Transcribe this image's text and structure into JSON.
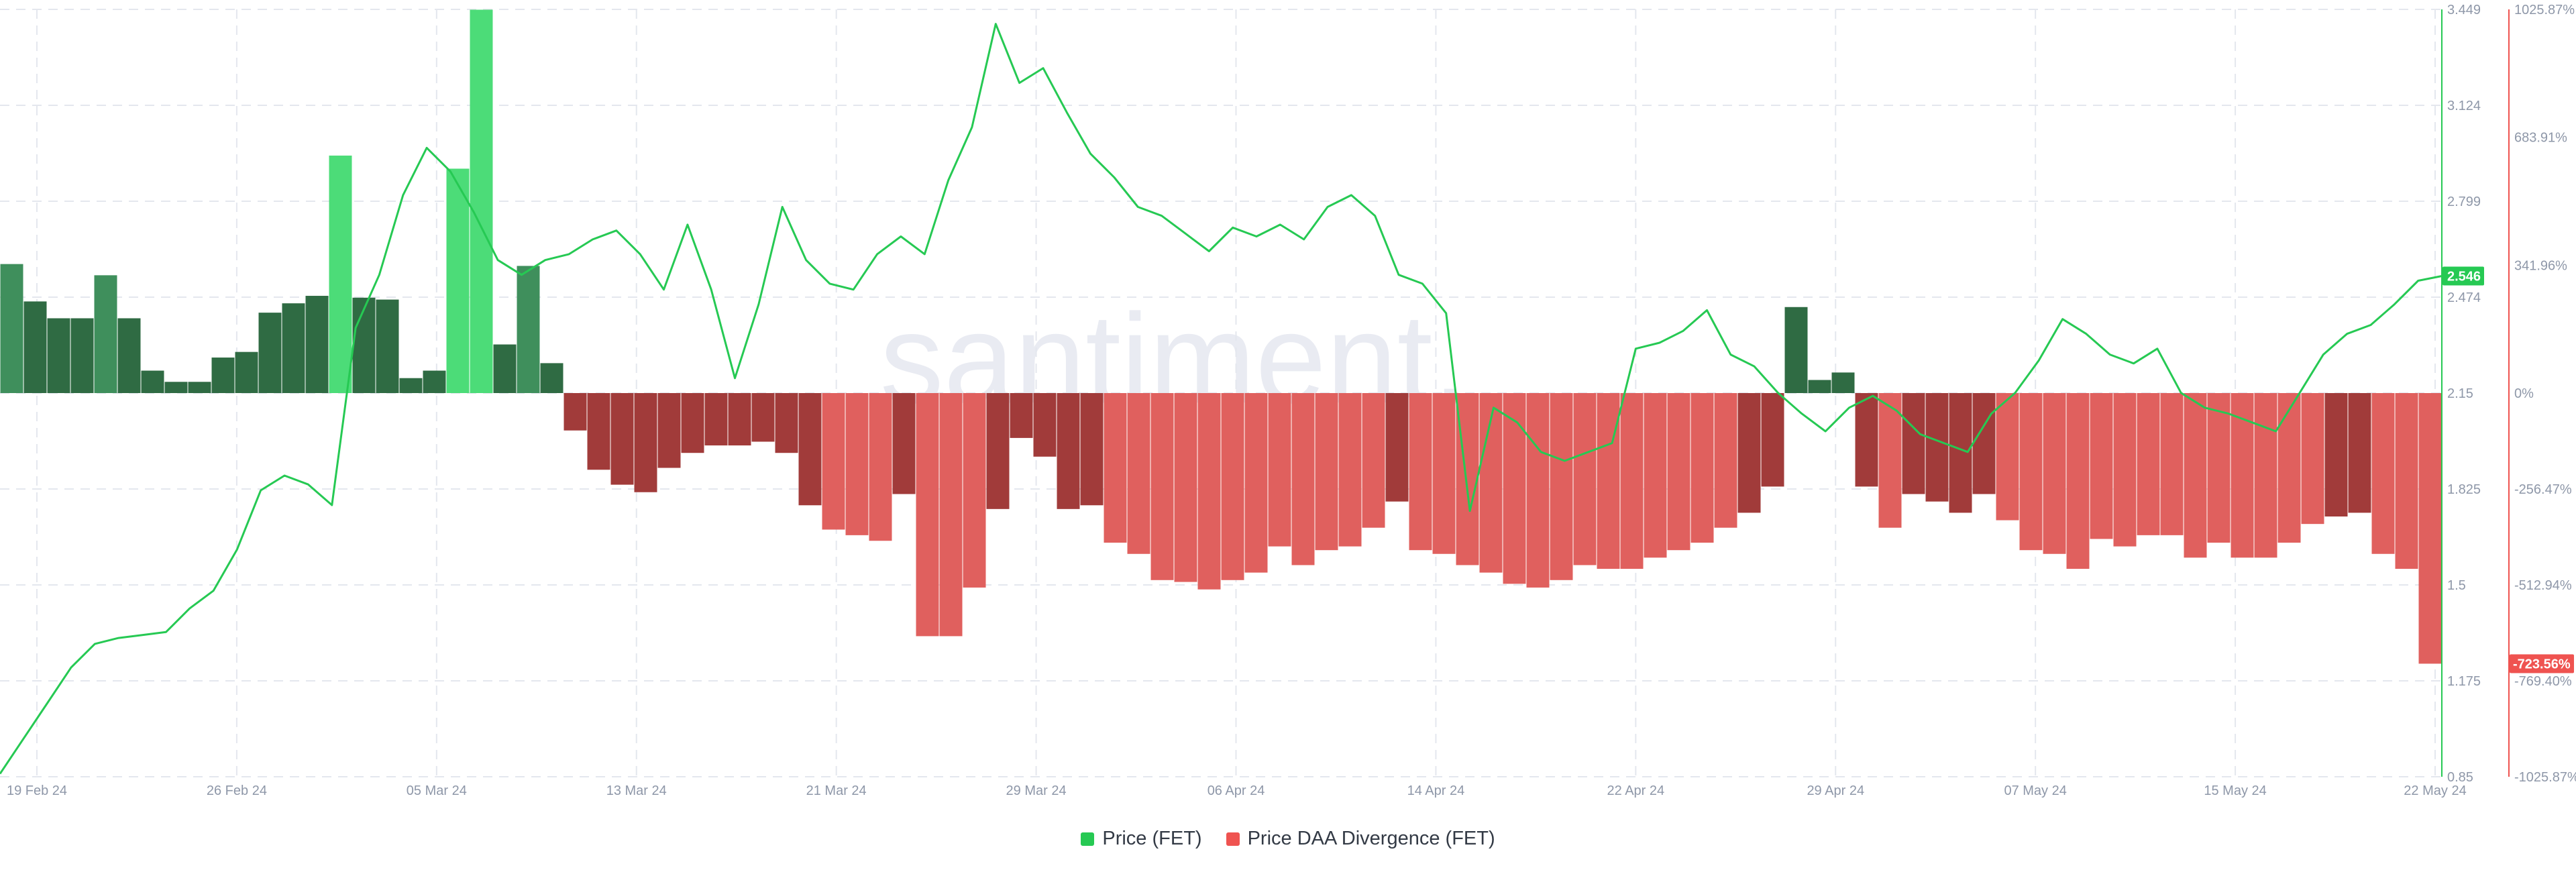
{
  "watermark": "santiment.",
  "legend": [
    {
      "label": "Price (FET)",
      "color": "#26c953"
    },
    {
      "label": "Price DAA Divergence (FET)",
      "color": "#ef5350"
    }
  ],
  "chart_data": {
    "type": "bar+line",
    "x_ticks": [
      "19 Feb 24",
      "26 Feb 24",
      "05 Mar 24",
      "13 Mar 24",
      "21 Mar 24",
      "29 Mar 24",
      "06 Apr 24",
      "14 Apr 24",
      "22 Apr 24",
      "29 Apr 24",
      "07 May 24",
      "15 May 24",
      "22 May 24"
    ],
    "price_axis": {
      "ticks": [
        "3.449",
        "3.124",
        "2.799",
        "2.474",
        "2.15",
        "1.825",
        "1.5",
        "1.175",
        "0.85"
      ],
      "range": [
        0.85,
        3.449
      ]
    },
    "divergence_axis": {
      "ticks": [
        "1025.87%",
        "683.91%",
        "341.96%",
        "0%",
        "-256.47%",
        "-512.94%",
        "-769.40%",
        "-1025.87%"
      ],
      "range": [
        -1025.87,
        1025.87
      ]
    },
    "last_price_label": "2.546",
    "last_divergence_label": "-723.56%",
    "price_series": {
      "name": "Price (FET)",
      "values": [
        0.86,
        0.98,
        1.1,
        1.22,
        1.3,
        1.32,
        1.33,
        1.34,
        1.42,
        1.48,
        1.62,
        1.82,
        1.87,
        1.84,
        1.77,
        2.37,
        2.55,
        2.82,
        2.98,
        2.9,
        2.76,
        2.6,
        2.55,
        2.6,
        2.62,
        2.67,
        2.7,
        2.62,
        2.5,
        2.72,
        2.5,
        2.2,
        2.45,
        2.78,
        2.6,
        2.52,
        2.5,
        2.62,
        2.68,
        2.62,
        2.87,
        3.05,
        3.4,
        3.2,
        3.25,
        3.1,
        2.96,
        2.88,
        2.78,
        2.75,
        2.69,
        2.63,
        2.71,
        2.68,
        2.72,
        2.67,
        2.78,
        2.82,
        2.75,
        2.55,
        2.52,
        2.42,
        1.75,
        2.1,
        2.05,
        1.95,
        1.92,
        1.95,
        1.98,
        2.3,
        2.32,
        2.36,
        2.43,
        2.28,
        2.24,
        2.15,
        2.08,
        2.02,
        2.1,
        2.14,
        2.09,
        2.01,
        1.98,
        1.95,
        2.08,
        2.15,
        2.26,
        2.4,
        2.35,
        2.28,
        2.25,
        2.3,
        2.15,
        2.1,
        2.08,
        2.05,
        2.02,
        2.15,
        2.28,
        2.35,
        2.38,
        2.45,
        2.53,
        2.546
      ]
    },
    "divergence_series": {
      "name": "Price DAA Divergence (FET)",
      "values": [
        345,
        245,
        200,
        200,
        315,
        200,
        60,
        30,
        30,
        95,
        110,
        215,
        240,
        260,
        635,
        255,
        250,
        40,
        60,
        600,
        1025,
        130,
        340,
        80,
        -100,
        -205,
        -245,
        -265,
        -200,
        -160,
        -140,
        -140,
        -130,
        -160,
        -300,
        -365,
        -380,
        -395,
        -270,
        -650,
        -650,
        -520,
        -310,
        -120,
        -170,
        -310,
        -300,
        -400,
        -430,
        -500,
        -505,
        -525,
        -500,
        -480,
        -410,
        -460,
        -420,
        -410,
        -360,
        -290,
        -420,
        -430,
        -460,
        -480,
        -510,
        -520,
        -500,
        -460,
        -470,
        -470,
        -440,
        -420,
        -400,
        -360,
        -320,
        -250,
        230,
        35,
        55,
        -250,
        -360,
        -270,
        -290,
        -320,
        -270,
        -340,
        -420,
        -430,
        -470,
        -390,
        -410,
        -380,
        -380,
        -440,
        -400,
        -440,
        -440,
        -400,
        -350,
        -330,
        -320,
        -430,
        -470,
        -723.56
      ]
    }
  }
}
